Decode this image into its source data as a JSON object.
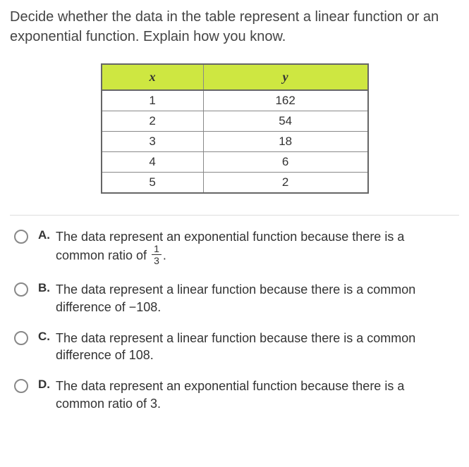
{
  "question": "Decide whether the data in the table represent a linear function or an exponential function. Explain how you know.",
  "table": {
    "headers": {
      "x": "x",
      "y": "y"
    },
    "header_bg": "#cee741",
    "border_color": "#888888",
    "rows": [
      {
        "x": "1",
        "y": "162"
      },
      {
        "x": "2",
        "y": "54"
      },
      {
        "x": "3",
        "y": "18"
      },
      {
        "x": "4",
        "y": "6"
      },
      {
        "x": "5",
        "y": "2"
      }
    ]
  },
  "options": {
    "a": {
      "letter": "A.",
      "pre": "The data represent an exponential function because there is a common ratio of ",
      "frac_num": "1",
      "frac_den": "3",
      "post": "."
    },
    "b": {
      "letter": "B.",
      "text": "The data represent a linear function because there is a common difference of −108."
    },
    "c": {
      "letter": "C.",
      "text": "The data represent a linear function because there is a common difference of 108."
    },
    "d": {
      "letter": "D.",
      "text": "The data represent an exponential function because there is a common ratio of 3."
    }
  }
}
